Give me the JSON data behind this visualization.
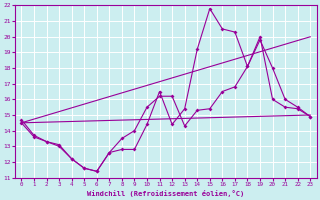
{
  "xlabel": "Windchill (Refroidissement éolien,°C)",
  "bg_color": "#cceef0",
  "grid_color": "#ffffff",
  "line_color": "#990099",
  "xlim": [
    -0.5,
    23.5
  ],
  "ylim": [
    11,
    22
  ],
  "xticks": [
    0,
    1,
    2,
    3,
    4,
    5,
    6,
    7,
    8,
    9,
    10,
    11,
    12,
    13,
    14,
    15,
    16,
    17,
    18,
    19,
    20,
    21,
    22,
    23
  ],
  "yticks": [
    11,
    12,
    13,
    14,
    15,
    16,
    17,
    18,
    19,
    20,
    21,
    22
  ],
  "line1_x": [
    0,
    1,
    2,
    3,
    4,
    5,
    6,
    7,
    8,
    9,
    10,
    11,
    12,
    13,
    14,
    15,
    16,
    17,
    18,
    19,
    20,
    21,
    22,
    23
  ],
  "line1_y": [
    14.7,
    13.7,
    13.3,
    13.1,
    12.2,
    11.6,
    11.4,
    12.6,
    12.8,
    12.8,
    14.4,
    16.5,
    14.4,
    15.4,
    19.2,
    21.8,
    20.5,
    20.3,
    18.1,
    20.0,
    16.0,
    15.5,
    15.4,
    14.9
  ],
  "line2_x": [
    0,
    1,
    2,
    3,
    4,
    5,
    6,
    7,
    8,
    9,
    10,
    11,
    12,
    13,
    14,
    15,
    16,
    17,
    18,
    19,
    20,
    21,
    22,
    23
  ],
  "line2_y": [
    14.5,
    13.6,
    13.3,
    13.0,
    12.2,
    11.6,
    11.4,
    12.6,
    13.5,
    14.0,
    15.5,
    16.2,
    16.2,
    14.3,
    15.3,
    15.4,
    16.5,
    16.8,
    18.1,
    19.8,
    18.0,
    16.0,
    15.5,
    14.9
  ],
  "line3_x": [
    0,
    23
  ],
  "line3_y": [
    14.5,
    15.0
  ],
  "line4_x": [
    0,
    23
  ],
  "line4_y": [
    14.5,
    20.0
  ]
}
